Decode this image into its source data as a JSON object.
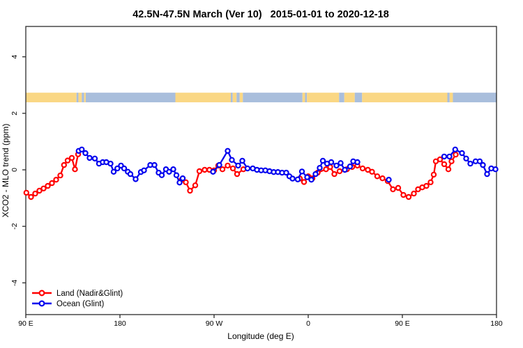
{
  "window": {
    "title": "42.5N-47.5N March (Ver 10)   2015-01-01 to 2020-12-18"
  },
  "chart_data": {
    "type": "line",
    "title": "42.5N-47.5N March (Ver 10)   2015-01-01 to 2020-12-18",
    "xlabel": "Longitude (deg E)",
    "ylabel": "XCO2 - MLO trend (ppm)",
    "x_axis_note": "longitude wraps eastward from 90E; offsets are degrees east of 90E over a 450-degree span",
    "xlim_offset_deg": [
      0,
      450
    ],
    "ylim": [
      -5,
      5
    ],
    "grid": false,
    "legend_position": "bottom-left",
    "xticks": [
      {
        "offset": 0,
        "label": "90 E"
      },
      {
        "offset": 90,
        "label": "180"
      },
      {
        "offset": 180,
        "label": "90 W"
      },
      {
        "offset": 270,
        "label": "0"
      },
      {
        "offset": 360,
        "label": "90 E"
      },
      {
        "offset": 450,
        "label": "180"
      }
    ],
    "yticks": [
      {
        "value": -4,
        "label": "-4"
      },
      {
        "value": -2,
        "label": "-2"
      },
      {
        "value": 0,
        "label": "0"
      },
      {
        "value": 2,
        "label": "2"
      },
      {
        "value": 4,
        "label": "4"
      }
    ],
    "map_strip": {
      "description": "land/ocean coastline band at ~45N drawn across the top of the plot",
      "value_range": [
        2.39,
        2.73
      ],
      "land_color": "#FAD784",
      "ocean_color": "#A9BEDC",
      "segments": [
        {
          "type": "land",
          "from": 0,
          "to": 48.5
        },
        {
          "type": "ocean",
          "from": 48.5,
          "to": 50.3
        },
        {
          "type": "land",
          "from": 50.3,
          "to": 53.5
        },
        {
          "type": "ocean",
          "from": 53.5,
          "to": 55.8
        },
        {
          "type": "land",
          "from": 55.8,
          "to": 57.3
        },
        {
          "type": "ocean",
          "from": 57.3,
          "to": 143
        },
        {
          "type": "land",
          "from": 143,
          "to": 196
        },
        {
          "type": "ocean",
          "from": 196,
          "to": 197.8
        },
        {
          "type": "land",
          "from": 197.8,
          "to": 201.5
        },
        {
          "type": "ocean",
          "from": 201.5,
          "to": 204.5
        },
        {
          "type": "land",
          "from": 204.5,
          "to": 207.5
        },
        {
          "type": "ocean",
          "from": 207.5,
          "to": 264.5
        },
        {
          "type": "land",
          "from": 264.5,
          "to": 267
        },
        {
          "type": "ocean",
          "from": 267,
          "to": 268.8
        },
        {
          "type": "land",
          "from": 268.8,
          "to": 299.5
        },
        {
          "type": "ocean",
          "from": 299.5,
          "to": 304.5
        },
        {
          "type": "land",
          "from": 304.5,
          "to": 314.5
        },
        {
          "type": "ocean",
          "from": 314.5,
          "to": 321.5
        },
        {
          "type": "land",
          "from": 321.5,
          "to": 403
        },
        {
          "type": "ocean",
          "from": 403,
          "to": 405.2
        },
        {
          "type": "land",
          "from": 405.2,
          "to": 408.3
        },
        {
          "type": "ocean",
          "from": 408.3,
          "to": 450
        }
      ]
    },
    "series": [
      {
        "name": "Land (Nadir&Glint)",
        "color": "#FF0000",
        "marker": "open-circle",
        "segments": [
          [
            [
              0.5,
              -0.81
            ],
            [
              5,
              -0.96
            ],
            [
              9,
              -0.84
            ],
            [
              13,
              -0.74
            ],
            [
              17,
              -0.66
            ],
            [
              21,
              -0.57
            ],
            [
              25,
              -0.47
            ],
            [
              29,
              -0.35
            ],
            [
              33,
              -0.2
            ],
            [
              36.5,
              0.17
            ],
            [
              40,
              0.33
            ],
            [
              44,
              0.42
            ],
            [
              47,
              0.02
            ],
            [
              50,
              0.55
            ]
          ],
          [
            [
              149,
              -0.35
            ],
            [
              153,
              -0.44
            ],
            [
              157,
              -0.74
            ],
            [
              162,
              -0.55
            ],
            [
              166,
              -0.05
            ],
            [
              171,
              0.0
            ],
            [
              175.5,
              0.0
            ],
            [
              180,
              -0.02
            ],
            [
              184,
              0.15
            ],
            [
              188,
              0.02
            ],
            [
              193,
              0.15
            ],
            [
              198,
              0.05
            ],
            [
              202,
              -0.15
            ],
            [
              208,
              0.02
            ]
          ],
          [
            [
              262,
              -0.31
            ],
            [
              266,
              -0.43
            ],
            [
              270,
              -0.23
            ],
            [
              274,
              -0.3
            ],
            [
              279,
              -0.1
            ],
            [
              287,
              0.02
            ],
            [
              291,
              0.1
            ],
            [
              295,
              -0.15
            ],
            [
              300,
              -0.05
            ],
            [
              307,
              0.02
            ],
            [
              312,
              0.1
            ],
            [
              317,
              0.15
            ],
            [
              322,
              0.05
            ],
            [
              327,
              0.0
            ],
            [
              331,
              -0.07
            ],
            [
              336,
              -0.23
            ],
            [
              341,
              -0.3
            ],
            [
              346,
              -0.4
            ],
            [
              351,
              -0.69
            ],
            [
              356,
              -0.64
            ],
            [
              361,
              -0.89
            ],
            [
              366,
              -0.96
            ],
            [
              371,
              -0.84
            ],
            [
              375,
              -0.69
            ],
            [
              379,
              -0.62
            ],
            [
              383,
              -0.57
            ],
            [
              387,
              -0.44
            ],
            [
              390,
              -0.17
            ],
            [
              392,
              0.3
            ],
            [
              396,
              0.37
            ],
            [
              400,
              0.2
            ],
            [
              404,
              0.02
            ],
            [
              407,
              0.3
            ],
            [
              411,
              0.54
            ]
          ]
        ]
      },
      {
        "name": "Ocean (Glint)",
        "color": "#0000EE",
        "marker": "open-circle",
        "segments": [
          [
            [
              50.5,
              0.67
            ],
            [
              53.5,
              0.72
            ],
            [
              57,
              0.59
            ],
            [
              61,
              0.42
            ],
            [
              66,
              0.4
            ],
            [
              70,
              0.22
            ],
            [
              73.5,
              0.27
            ],
            [
              77,
              0.27
            ],
            [
              81,
              0.22
            ],
            [
              84,
              -0.07
            ],
            [
              87.5,
              0.05
            ],
            [
              91,
              0.15
            ],
            [
              94,
              0.05
            ],
            [
              97.5,
              -0.07
            ],
            [
              100,
              -0.15
            ],
            [
              105,
              -0.33
            ],
            [
              110,
              -0.08
            ],
            [
              113,
              -0.02
            ],
            [
              119,
              0.17
            ],
            [
              123,
              0.17
            ],
            [
              127,
              -0.1
            ],
            [
              130,
              -0.19
            ],
            [
              134,
              0.02
            ],
            [
              137,
              -0.07
            ],
            [
              141,
              0.02
            ],
            [
              144,
              -0.19
            ],
            [
              147,
              -0.45
            ],
            [
              150,
              -0.3
            ]
          ],
          [
            [
              179,
              -0.07
            ],
            [
              185,
              0.17
            ],
            [
              193,
              0.67
            ],
            [
              197,
              0.35
            ],
            [
              203,
              0.15
            ],
            [
              207,
              0.32
            ],
            [
              212,
              0.05
            ],
            [
              217,
              0.05
            ],
            [
              221,
              0.0
            ],
            [
              225,
              -0.02
            ],
            [
              229,
              -0.02
            ],
            [
              233,
              -0.05
            ],
            [
              237,
              -0.08
            ],
            [
              241,
              -0.08
            ],
            [
              245,
              -0.1
            ],
            [
              249,
              -0.1
            ],
            [
              252,
              -0.23
            ],
            [
              255,
              -0.31
            ],
            [
              260,
              -0.34
            ],
            [
              264,
              -0.06
            ],
            [
              269,
              -0.26
            ],
            [
              273,
              -0.35
            ],
            [
              277,
              -0.15
            ],
            [
              281,
              0.07
            ],
            [
              284,
              0.32
            ],
            [
              288,
              0.22
            ],
            [
              292,
              0.27
            ],
            [
              297,
              0.15
            ],
            [
              301,
              0.24
            ],
            [
              305,
              0.0
            ],
            [
              310,
              0.12
            ],
            [
              313,
              0.3
            ],
            [
              317,
              0.27
            ]
          ],
          [
            [
              347,
              -0.35
            ]
          ],
          [
            [
              400,
              0.47
            ],
            [
              405,
              0.47
            ],
            [
              410.5,
              0.72
            ],
            [
              417,
              0.59
            ],
            [
              421,
              0.4
            ],
            [
              425,
              0.22
            ],
            [
              430,
              0.3
            ],
            [
              434,
              0.3
            ],
            [
              437,
              0.17
            ],
            [
              441,
              -0.15
            ],
            [
              445,
              0.05
            ],
            [
              449,
              0.02
            ]
          ]
        ]
      }
    ],
    "legend": [
      {
        "label": "Land (Nadir&Glint)",
        "color": "#FF0000"
      },
      {
        "label": "Ocean (Glint)",
        "color": "#0000EE"
      }
    ],
    "frame_color": "#2b2b2b"
  }
}
